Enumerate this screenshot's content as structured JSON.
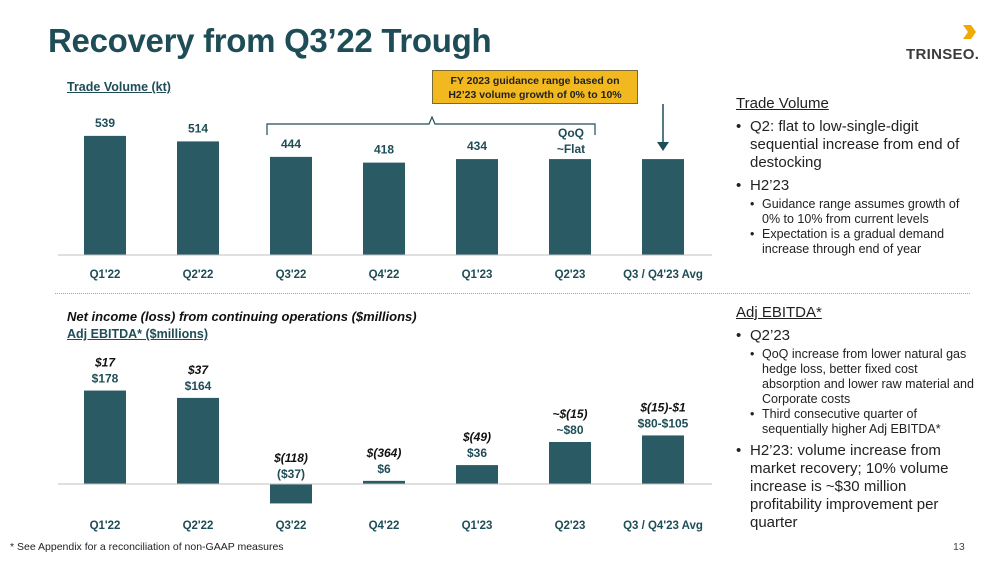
{
  "title": "Recovery from Q3’22 Trough",
  "logo": {
    "text": "TRINSEO."
  },
  "callout": {
    "line1": "FY 2023 guidance range based on",
    "line2": "H2’23 volume growth of 0% to 10%"
  },
  "trade_annotation": {
    "line1": "QoQ",
    "line2": "~Flat"
  },
  "chart_data": [
    {
      "type": "bar",
      "title": "Trade Volume (kt)",
      "categories": [
        "Q1'22",
        "Q2'22",
        "Q3'22",
        "Q4'22",
        "Q1'23",
        "Q2'23",
        "Q3 / Q4'23 Avg"
      ],
      "values": [
        539,
        514,
        444,
        418,
        434,
        434,
        434
      ],
      "labels": [
        "539",
        "514",
        "444",
        "418",
        "434",
        "",
        ""
      ],
      "color": "#2a5a63"
    },
    {
      "type": "bar",
      "title": "Net income (loss) from continuing operations ($millions)",
      "subtitle": "Adj EBITDA* ($millions)",
      "categories": [
        "Q1'22",
        "Q2'22",
        "Q3'22",
        "Q4'22",
        "Q1'23",
        "Q2'23",
        "Q3 / Q4'23 Avg"
      ],
      "values": [
        178,
        164,
        -37,
        6,
        36,
        80,
        92.5
      ],
      "labels": [
        "$178",
        "$164",
        "($37)",
        "$6",
        "$36",
        "~$80",
        "$80-$105"
      ],
      "net_income_labels": [
        "$17",
        "$37",
        "$(118)",
        "$(364)",
        "$(49)",
        "~$(15)",
        "$(15)-$1"
      ],
      "color": "#2a5a63"
    }
  ],
  "right_panel": {
    "trade": {
      "heading": "Trade Volume",
      "b1": "Q2: flat to low-single-digit sequential increase from end of destocking",
      "b2": "H2’23",
      "b2_subs": [
        "Guidance range assumes growth of 0% to 10% from current levels",
        "Expectation is a gradual demand increase through end of year"
      ]
    },
    "ebitda": {
      "heading": "Adj EBITDA*",
      "b1": "Q2’23",
      "b1_subs": [
        "QoQ increase from lower natural gas hedge loss, better fixed cost absorption and lower raw material and Corporate costs",
        "Third consecutive quarter of sequentially higher Adj EBITDA*"
      ],
      "b2": "H2’23: volume increase from market recovery; 10% volume increase is ~$30 million profitability improvement per quarter"
    }
  },
  "footnote": "* See Appendix for a reconciliation of non-GAAP measures",
  "page_number": "13"
}
